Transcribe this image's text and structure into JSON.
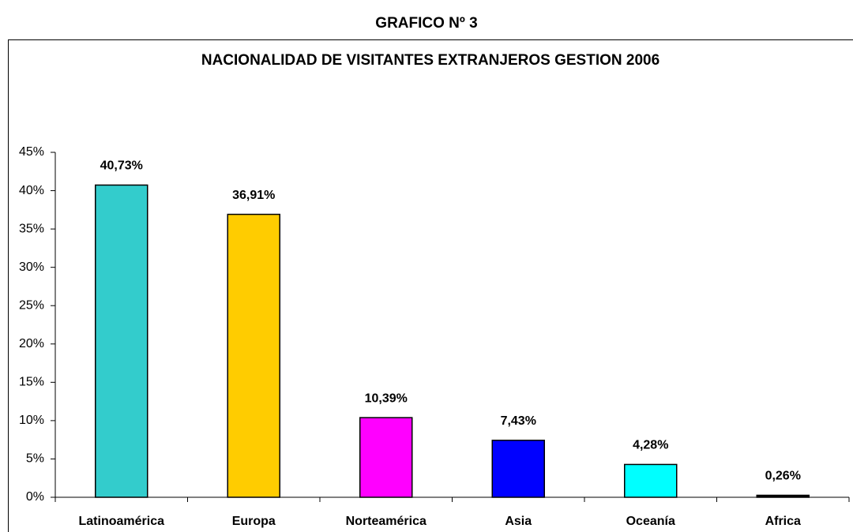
{
  "chart_data": {
    "type": "bar",
    "header": "GRAFICO Nº 3",
    "title": "NACIONALIDAD DE VISITANTES EXTRANJEROS GESTION 2006",
    "categories": [
      "Latinoamérica",
      "Europa",
      "Norteamérica",
      "Asia",
      "Oceanía",
      "Africa"
    ],
    "values": [
      40.73,
      36.91,
      10.39,
      7.43,
      4.28,
      0.26
    ],
    "value_labels": [
      "40,73%",
      "36,91%",
      "10,39%",
      "7,43%",
      "4,28%",
      "0,26%"
    ],
    "colors": [
      "#33CCCC",
      "#FFCC00",
      "#FF00FF",
      "#0000FF",
      "#00FFFF",
      "#000000"
    ],
    "ylim": [
      0,
      45
    ],
    "yticks": [
      {
        "value": 0,
        "label": "0%"
      },
      {
        "value": 5,
        "label": "5%"
      },
      {
        "value": 10,
        "label": "10%"
      },
      {
        "value": 15,
        "label": "15%"
      },
      {
        "value": 20,
        "label": "20%"
      },
      {
        "value": 25,
        "label": "25%"
      },
      {
        "value": 30,
        "label": "30%"
      },
      {
        "value": 35,
        "label": "35%"
      },
      {
        "value": 40,
        "label": "40%"
      },
      {
        "value": 45,
        "label": "45%"
      }
    ],
    "grid": false
  }
}
